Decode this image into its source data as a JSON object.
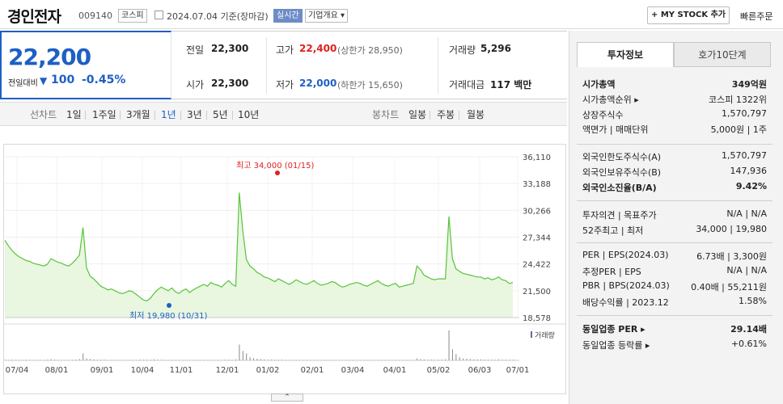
{
  "header": {
    "name": "경인전자",
    "code": "009140",
    "market": "코스피",
    "date": "2024.07.04  기준(장마감)",
    "realtime": "실시간",
    "overview": "기업개요 ▾",
    "mystock": "+ MY STOCK 추가",
    "quick_order": "빠른주문"
  },
  "price": {
    "current": "22,200",
    "change_label": "전일대비",
    "change_arrow": "▼",
    "change": "100",
    "change_pct": "-0.45%",
    "prev_label": "전일",
    "prev": "22,300",
    "high_label": "고가",
    "high": "22,400",
    "upper_limit": "(상한가 28,950)",
    "volume_label": "거래량",
    "volume": "5,296",
    "open_label": "시가",
    "open": "22,300",
    "low_label": "저가",
    "low": "22,000",
    "lower_limit": "(하한가 15,650)",
    "amount_label": "거래대금",
    "amount": "117 백만"
  },
  "tabs": {
    "line_label": "선차트",
    "periods": [
      "1일",
      "1주일",
      "3개월",
      "1년",
      "3년",
      "5년",
      "10년"
    ],
    "active": "1년",
    "candle_label": "봉차트",
    "candles": [
      "일봉",
      "주봉",
      "월봉"
    ]
  },
  "chart_data": {
    "type": "line",
    "x_ticks": [
      "07/04",
      "08/01",
      "09/01",
      "10/04",
      "11/01",
      "12/01",
      "01/02",
      "02/01",
      "03/04",
      "04/01",
      "05/02",
      "06/03",
      "07/01"
    ],
    "y_ticks": [
      "36,110",
      "33,188",
      "30,266",
      "27,344",
      "24,422",
      "21,500",
      "18,578"
    ],
    "ylim": [
      18578,
      36110
    ],
    "series": [
      {
        "values": [
          27000,
          26400,
          25900,
          25500,
          25200,
          25000,
          24800,
          24700,
          24500,
          24400,
          24300,
          24200,
          24400,
          25000,
          24800,
          24600,
          24500,
          24300,
          24200,
          24500,
          24900,
          25400,
          28400,
          24000,
          23100,
          22800,
          22400,
          22000,
          21800,
          21600,
          21700,
          21500,
          21300,
          21200,
          21300,
          21500,
          21400,
          21100,
          20800,
          20500,
          20400,
          20700,
          21200,
          21600,
          21900,
          21700,
          21500,
          21800,
          21400,
          21200,
          21500,
          21700,
          21300,
          21600,
          21800,
          22000,
          22200,
          22000,
          22400,
          22200,
          22100,
          21900,
          22300,
          22600,
          22200,
          22000,
          32200,
          28000,
          24900,
          24200,
          23900,
          23500,
          23300,
          23000,
          22900,
          22700,
          22500,
          22800,
          22600,
          22400,
          22200,
          22400,
          22700,
          22500,
          22300,
          22200,
          22400,
          22600,
          22300,
          22100,
          22200,
          22300,
          22500,
          22400,
          22100,
          21900,
          22000,
          22200,
          22300,
          22400,
          22300,
          22100,
          22000,
          22200,
          22400,
          22600,
          22300,
          22100,
          22000,
          22200,
          22300,
          21900,
          22000,
          22100,
          22200,
          22300,
          24200,
          23800,
          23200,
          23000,
          22800,
          22700,
          22800,
          22800,
          22800,
          29600,
          25000,
          23900,
          23600,
          23400,
          23300,
          23200,
          23100,
          23000,
          23000,
          22800,
          22900,
          22700,
          22800,
          23000,
          22700,
          22600,
          22300,
          22400
        ],
        "volumes": [
          0.02,
          0.01,
          0.02,
          0.01,
          0.01,
          0.01,
          0.02,
          0.01,
          0.01,
          0.01,
          0.01,
          0.01,
          0.02,
          0.03,
          0.02,
          0.01,
          0.01,
          0.01,
          0.01,
          0.01,
          0.02,
          0.04,
          0.22,
          0.06,
          0.04,
          0.03,
          0.02,
          0.02,
          0.02,
          0.01,
          0.01,
          0.01,
          0.01,
          0.01,
          0.01,
          0.01,
          0.01,
          0.01,
          0.02,
          0.02,
          0.02,
          0.02,
          0.03,
          0.02,
          0.02,
          0.01,
          0.01,
          0.01,
          0.01,
          0.01,
          0.01,
          0.01,
          0.01,
          0.01,
          0.01,
          0.01,
          0.01,
          0.01,
          0.01,
          0.01,
          0.01,
          0.01,
          0.02,
          0.02,
          0.01,
          0.03,
          0.5,
          0.3,
          0.22,
          0.1,
          0.07,
          0.05,
          0.04,
          0.03,
          0.02,
          0.02,
          0.02,
          0.02,
          0.02,
          0.01,
          0.01,
          0.01,
          0.01,
          0.01,
          0.01,
          0.01,
          0.01,
          0.01,
          0.01,
          0.01,
          0.01,
          0.01,
          0.01,
          0.01,
          0.01,
          0.01,
          0.01,
          0.01,
          0.01,
          0.01,
          0.01,
          0.01,
          0.01,
          0.01,
          0.01,
          0.01,
          0.01,
          0.01,
          0.01,
          0.01,
          0.01,
          0.01,
          0.01,
          0.01,
          0.01,
          0.01,
          0.06,
          0.04,
          0.03,
          0.02,
          0.02,
          0.02,
          0.02,
          0.02,
          0.03,
          0.95,
          0.35,
          0.2,
          0.1,
          0.06,
          0.05,
          0.04,
          0.03,
          0.03,
          0.03,
          0.02,
          0.02,
          0.02,
          0.02,
          0.03,
          0.02,
          0.02,
          0.02,
          0.02
        ]
      }
    ],
    "max_annotation": "최고 34,000 (01/15)",
    "min_annotation": "최저 19,980 (10/31)",
    "max_index": 66,
    "min_index": 40,
    "volume_legend": "거래량",
    "colors": {
      "line": "#57c43b",
      "fill": "#e9f6e0",
      "volume": "#8a8a8a",
      "max": "#e02020",
      "min": "#1e5fc4"
    }
  },
  "collapse_label": "⌃",
  "invest": {
    "tab_active": "투자정보",
    "tab_other": "호가10단계",
    "rows": [
      {
        "label": "시가총액",
        "value": "349억원",
        "bold": true
      },
      {
        "label": "시가총액순위 ▸",
        "value": "코스피 1322위"
      },
      {
        "label": "상장주식수",
        "value": "1,570,797"
      },
      {
        "label": "액면가 | 매매단위",
        "value": "5,000원 | 1주"
      },
      {
        "label": "외국인한도주식수(A)",
        "value": "1,570,797"
      },
      {
        "label": "외국인보유주식수(B)",
        "value": "147,936"
      },
      {
        "label": "외국인소진율(B/A)",
        "value": "9.42%",
        "bold": true
      },
      {
        "label": "투자의견 | 목표주가",
        "value": "N/A | N/A"
      },
      {
        "label": "52주최고 | 최저",
        "value": "34,000 | 19,980"
      },
      {
        "label": "PER | EPS(2024.03)",
        "value": "6.73배 | 3,300원"
      },
      {
        "label": "추정PER | EPS",
        "value": "N/A | N/A"
      },
      {
        "label": "PBR | BPS(2024.03)",
        "value": "0.40배 | 55,211원"
      },
      {
        "label": "배당수익률 | 2023.12",
        "value": "1.58%"
      },
      {
        "label": "동일업종 PER ▸",
        "value": "29.14배",
        "bold": true
      },
      {
        "label": "동일업종 등락률 ▸",
        "value": "+0.61%",
        "red": true
      }
    ]
  }
}
